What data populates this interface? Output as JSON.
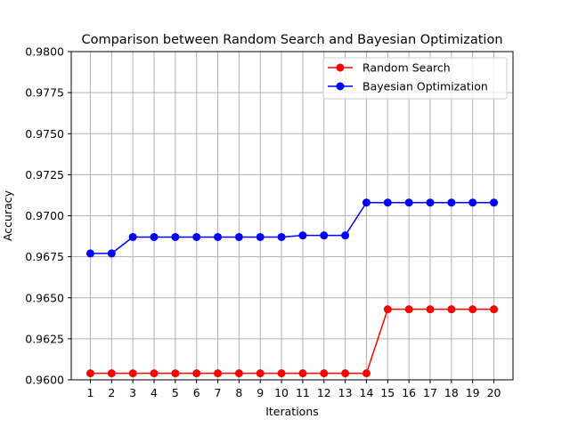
{
  "chart_data": {
    "type": "line",
    "title": "Comparison between Random Search and Bayesian Optimization",
    "xlabel": "Iterations",
    "ylabel": "Accuracy",
    "x": [
      1,
      2,
      3,
      4,
      5,
      6,
      7,
      8,
      9,
      10,
      11,
      12,
      13,
      14,
      15,
      16,
      17,
      18,
      19,
      20
    ],
    "xticks": [
      "1",
      "2",
      "3",
      "4",
      "5",
      "6",
      "7",
      "8",
      "9",
      "10",
      "11",
      "12",
      "13",
      "14",
      "15",
      "16",
      "17",
      "18",
      "19",
      "20"
    ],
    "ylim": [
      0.96,
      0.98
    ],
    "yticks": [
      "0.9600",
      "0.9625",
      "0.9650",
      "0.9675",
      "0.9700",
      "0.9725",
      "0.9750",
      "0.9775",
      "0.9800"
    ],
    "grid": true,
    "legend_position": "top-right",
    "series": [
      {
        "name": "Random Search",
        "color": "#ff0000",
        "values": [
          0.9604,
          0.9604,
          0.9604,
          0.9604,
          0.9604,
          0.9604,
          0.9604,
          0.9604,
          0.9604,
          0.9604,
          0.9604,
          0.9604,
          0.9604,
          0.9604,
          0.9643,
          0.9643,
          0.9643,
          0.9643,
          0.9643,
          0.9643
        ]
      },
      {
        "name": "Bayesian Optimization",
        "color": "#0000ff",
        "values": [
          0.9677,
          0.9677,
          0.9687,
          0.9687,
          0.9687,
          0.9687,
          0.9687,
          0.9687,
          0.9687,
          0.9687,
          0.9688,
          0.9688,
          0.9688,
          0.9708,
          0.9708,
          0.9708,
          0.9708,
          0.9708,
          0.9708,
          0.9708
        ]
      }
    ]
  }
}
